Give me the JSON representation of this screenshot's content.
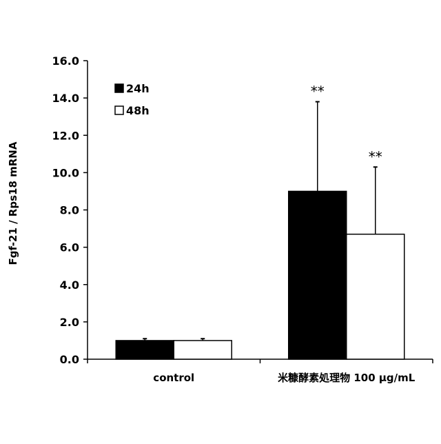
{
  "chart_data": {
    "type": "bar",
    "categories": [
      "control",
      "米糠酵素処理物 100 μg/mL"
    ],
    "series": [
      {
        "name": "24h",
        "color": "#000000",
        "values": [
          1.0,
          9.0
        ],
        "errors": [
          0.1,
          4.8
        ],
        "annotations": [
          "",
          "**"
        ]
      },
      {
        "name": "48h",
        "color": "#ffffff",
        "values": [
          1.0,
          6.7
        ],
        "errors": [
          0.1,
          3.6
        ],
        "annotations": [
          "",
          "**"
        ]
      }
    ],
    "ylabel": "Fgf-21 / Rps18 mRNA",
    "ylim": [
      0,
      16
    ],
    "yticks": [
      "0.0",
      "2.0",
      "4.0",
      "6.0",
      "8.0",
      "10.0",
      "12.0",
      "14.0",
      "16.0"
    ],
    "legend_position": "top-left",
    "grid": false
  }
}
